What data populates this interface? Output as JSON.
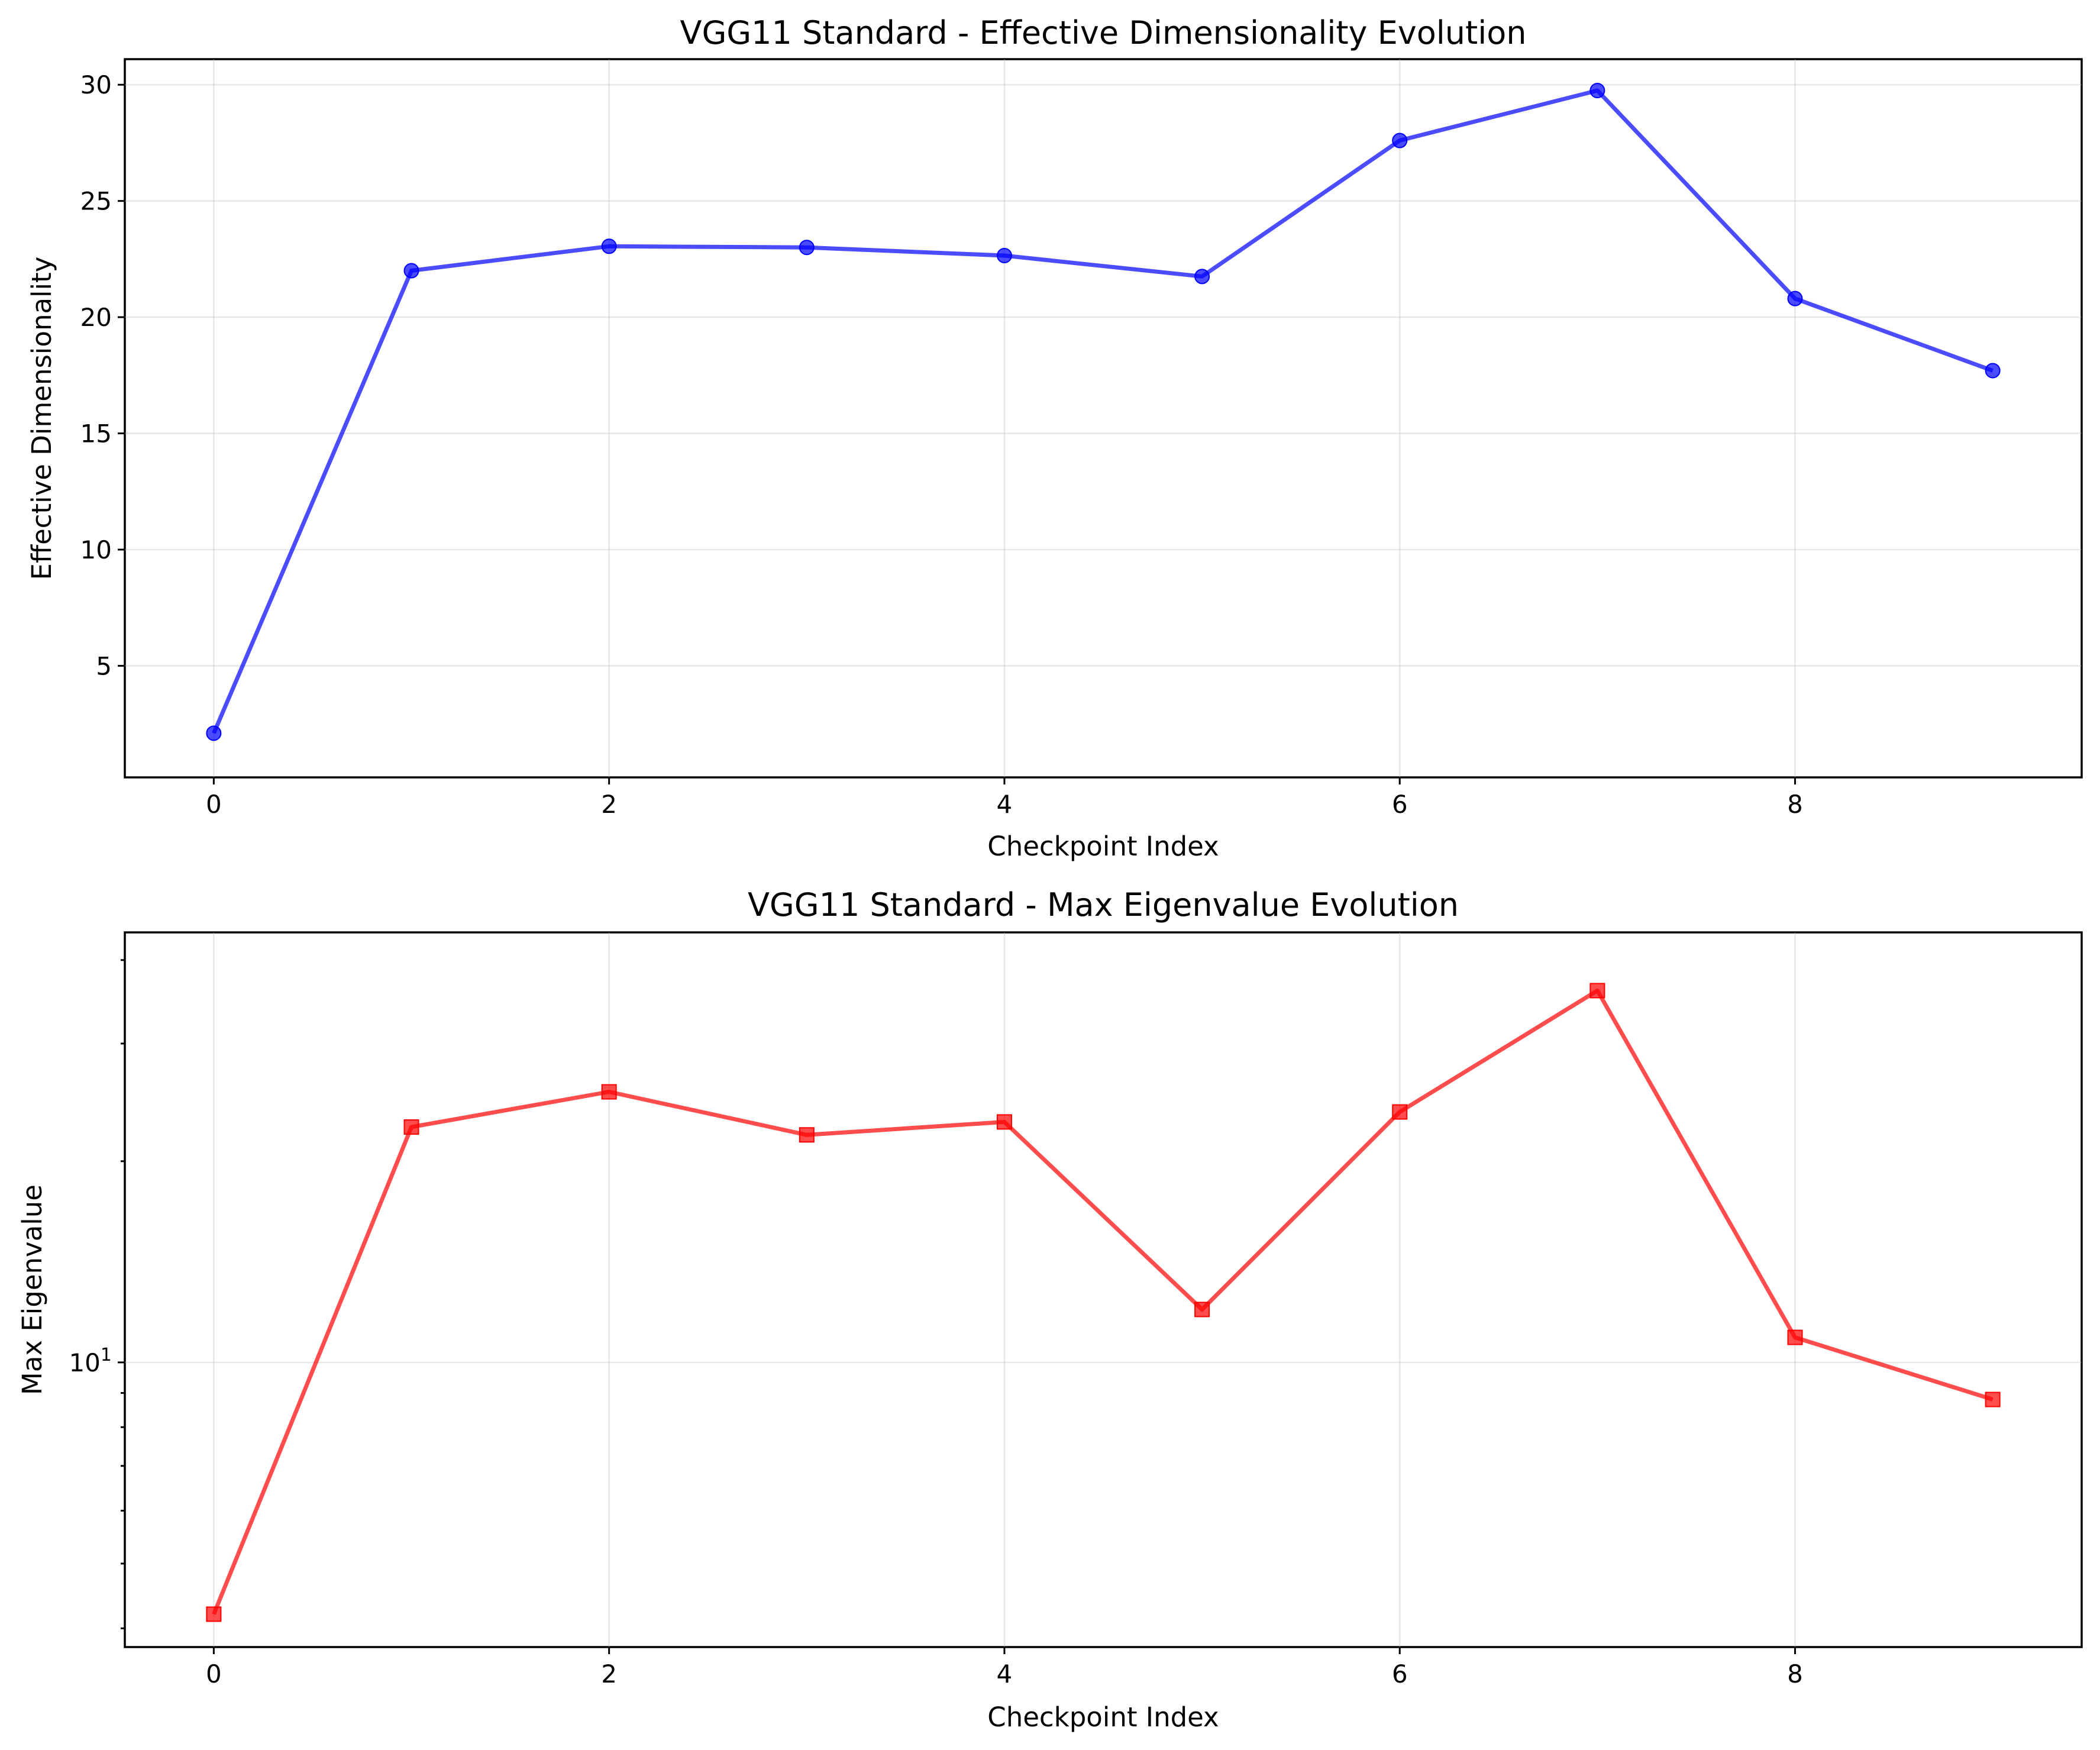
{
  "chart_data": [
    {
      "type": "line",
      "title": "VGG11 Standard - Effective Dimensionality Evolution",
      "xlabel": "Checkpoint Index",
      "ylabel": "Effective Dimensionality",
      "x": [
        0,
        1,
        2,
        3,
        4,
        5,
        6,
        7,
        8,
        9
      ],
      "xlim": [
        -0.45,
        9.45
      ],
      "xticks": [
        0,
        2,
        4,
        6,
        8
      ],
      "xtick_labels": [
        "0",
        "2",
        "4",
        "6",
        "8"
      ],
      "ylim": [
        0.2,
        31.1
      ],
      "yscale": "linear",
      "yticks": [
        5,
        10,
        15,
        20,
        25,
        30
      ],
      "ytick_labels": [
        "5",
        "10",
        "15",
        "20",
        "25",
        "30"
      ],
      "grid": true,
      "series": [
        {
          "values": [
            2.1,
            22.0,
            23.05,
            23.0,
            22.65,
            21.75,
            27.6,
            29.75,
            20.8,
            17.7
          ],
          "color": "#0000ff",
          "marker": "circle"
        }
      ]
    },
    {
      "type": "line",
      "title": "VGG11 Standard - Max Eigenvalue Evolution",
      "xlabel": "Checkpoint Index",
      "ylabel": "Max Eigenvalue",
      "x": [
        0,
        1,
        2,
        3,
        4,
        5,
        6,
        7,
        8,
        9
      ],
      "xlim": [
        -0.45,
        9.45
      ],
      "xticks": [
        0,
        2,
        4,
        6,
        8
      ],
      "xtick_labels": [
        "0",
        "2",
        "4",
        "6",
        "8"
      ],
      "ylim": [
        3.75,
        44.0
      ],
      "yscale": "log",
      "yticks": [
        10
      ],
      "ytick_labels": [
        "10^1"
      ],
      "grid": true,
      "series": [
        {
          "values": [
            4.2,
            22.5,
            25.4,
            21.9,
            22.9,
            12.0,
            23.7,
            36.0,
            10.9,
            8.8
          ],
          "color": "#ff0000",
          "marker": "square"
        }
      ]
    }
  ]
}
